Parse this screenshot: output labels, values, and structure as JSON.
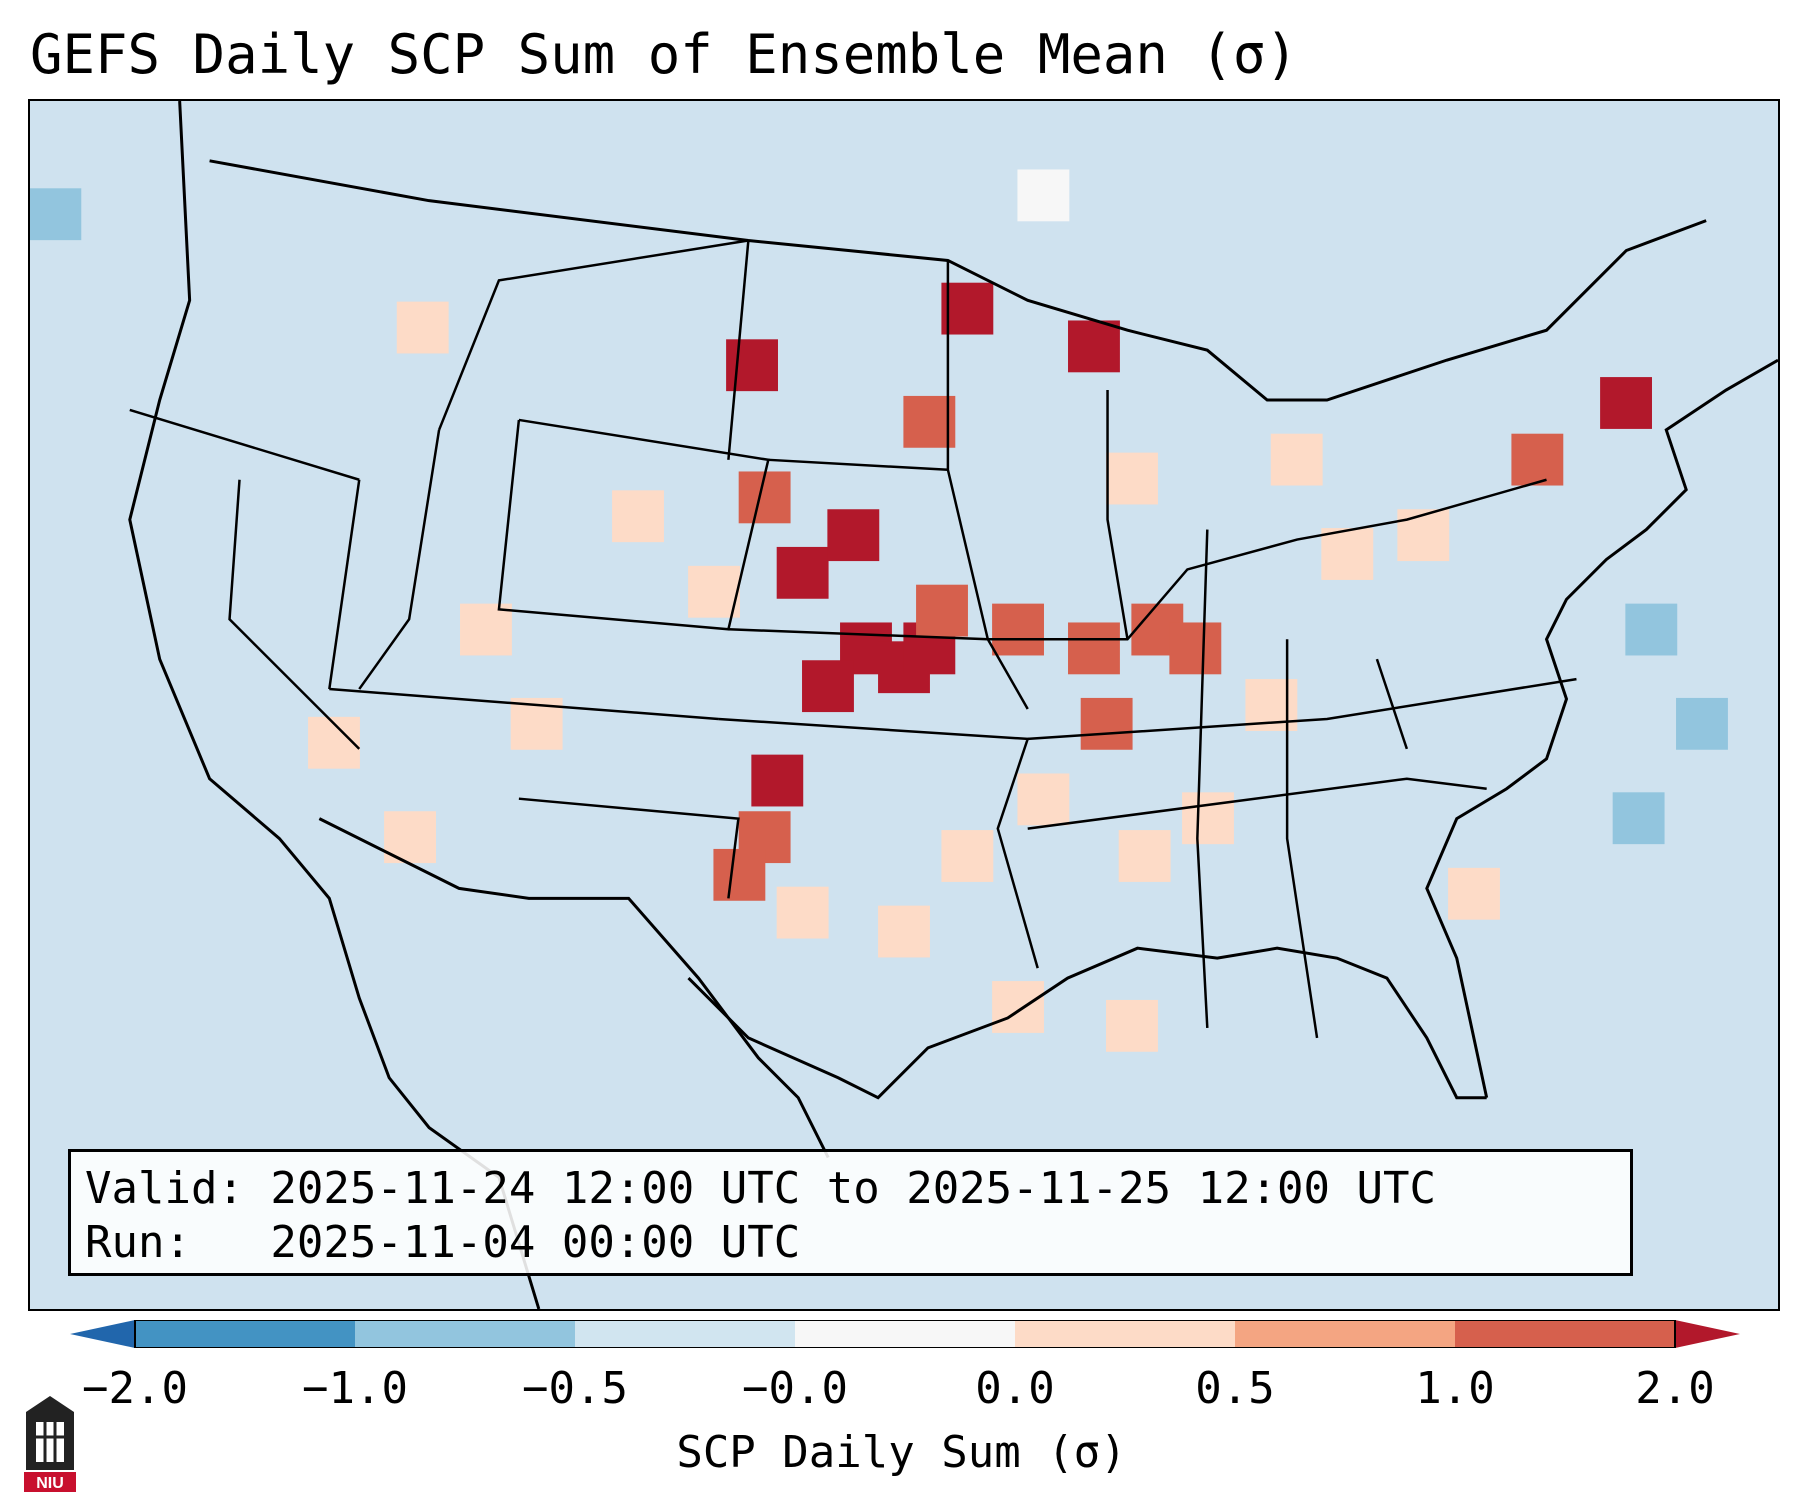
{
  "title": "GEFS Daily SCP Sum of Ensemble Mean (σ)",
  "map": {
    "region": "Contiguous United States",
    "background_color": "#cfe2ef",
    "anomaly_cells": [
      {
        "lon": -101.5,
        "lat": 40.5,
        "level": "high"
      },
      {
        "lon": -99.5,
        "lat": 41.5,
        "level": "high"
      },
      {
        "lon": -99.0,
        "lat": 38.5,
        "level": "high"
      },
      {
        "lon": -100.5,
        "lat": 37.5,
        "level": "high"
      },
      {
        "lon": -102.5,
        "lat": 35.0,
        "level": "high"
      },
      {
        "lon": -103.5,
        "lat": 46.0,
        "level": "high"
      },
      {
        "lon": -97.5,
        "lat": 38.0,
        "level": "high"
      },
      {
        "lon": -96.5,
        "lat": 38.5,
        "level": "high"
      },
      {
        "lon": -95.0,
        "lat": 47.5,
        "level": "high"
      },
      {
        "lon": -90.0,
        "lat": 46.5,
        "level": "high"
      },
      {
        "lon": -69.0,
        "lat": 45.0,
        "level": "high"
      },
      {
        "lon": -96.0,
        "lat": 39.5,
        "level": "medium"
      },
      {
        "lon": -93.0,
        "lat": 39.0,
        "level": "medium"
      },
      {
        "lon": -90.0,
        "lat": 38.5,
        "level": "medium"
      },
      {
        "lon": -87.5,
        "lat": 39.0,
        "level": "medium"
      },
      {
        "lon": -86.0,
        "lat": 38.5,
        "level": "medium"
      },
      {
        "lon": -103.0,
        "lat": 33.5,
        "level": "medium"
      },
      {
        "lon": -104.0,
        "lat": 32.5,
        "level": "medium"
      },
      {
        "lon": -103.0,
        "lat": 42.5,
        "level": "medium"
      },
      {
        "lon": -72.5,
        "lat": 43.5,
        "level": "medium"
      },
      {
        "lon": -96.5,
        "lat": 44.5,
        "level": "medium"
      },
      {
        "lon": -89.5,
        "lat": 36.5,
        "level": "medium"
      },
      {
        "lon": -108.0,
        "lat": 42.0,
        "level": "low"
      },
      {
        "lon": -105.0,
        "lat": 40.0,
        "level": "low"
      },
      {
        "lon": -95.0,
        "lat": 33.0,
        "level": "low"
      },
      {
        "lon": -97.5,
        "lat": 31.0,
        "level": "low"
      },
      {
        "lon": -101.5,
        "lat": 31.5,
        "level": "low"
      },
      {
        "lon": -92.0,
        "lat": 34.5,
        "level": "low"
      },
      {
        "lon": -88.0,
        "lat": 33.0,
        "level": "low"
      },
      {
        "lon": -85.5,
        "lat": 34.0,
        "level": "low"
      },
      {
        "lon": -83.0,
        "lat": 37.0,
        "level": "low"
      },
      {
        "lon": -80.0,
        "lat": 41.0,
        "level": "low"
      },
      {
        "lon": -77.0,
        "lat": 41.5,
        "level": "low"
      },
      {
        "lon": -120.0,
        "lat": 36.0,
        "level": "low"
      },
      {
        "lon": -117.0,
        "lat": 33.5,
        "level": "low"
      },
      {
        "lon": -114.0,
        "lat": 39.0,
        "level": "low"
      },
      {
        "lon": -112.0,
        "lat": 36.5,
        "level": "low"
      },
      {
        "lon": -116.5,
        "lat": 47.0,
        "level": "low"
      },
      {
        "lon": -93.0,
        "lat": 29.0,
        "level": "low"
      },
      {
        "lon": -88.5,
        "lat": 28.5,
        "level": "low"
      },
      {
        "lon": -75.0,
        "lat": 32.0,
        "level": "low"
      },
      {
        "lon": -82.0,
        "lat": 43.5,
        "level": "low"
      },
      {
        "lon": -88.5,
        "lat": 43.0,
        "level": "low"
      },
      {
        "lon": -68.0,
        "lat": 39.0,
        "level": "neg"
      },
      {
        "lon": -66.0,
        "lat": 36.5,
        "level": "neg"
      },
      {
        "lon": -68.5,
        "lat": 34.0,
        "level": "neg"
      },
      {
        "lon": -131.0,
        "lat": 50.0,
        "level": "neg"
      },
      {
        "lon": -92.0,
        "lat": 50.5,
        "level": "zero"
      }
    ]
  },
  "info_box": {
    "valid_line": "Valid: 2025-11-24 12:00 UTC to 2025-11-25 12:00 UTC",
    "run_line": "Run:   2025-11-04 00:00 UTC"
  },
  "colorbar": {
    "label": "SCP Daily Sum (σ)",
    "tick_labels": [
      "−2.0",
      "−1.0",
      "−0.5",
      "−0.0",
      "0.0",
      "0.5",
      "1.0",
      "2.0"
    ],
    "bin_colors": [
      "#4393c3",
      "#92c5de",
      "#d1e5f0",
      "#f7f7f7",
      "#fddbc7",
      "#f4a582",
      "#d6604d"
    ],
    "under_color": "#2166ac",
    "over_color": "#b2182b",
    "level_colors": {
      "neg": "#92c5de",
      "zero": "#f7f7f7",
      "low": "#fddbc7",
      "medium": "#d6604d",
      "high": "#b2182b"
    }
  },
  "logo": {
    "text": "NIU"
  }
}
